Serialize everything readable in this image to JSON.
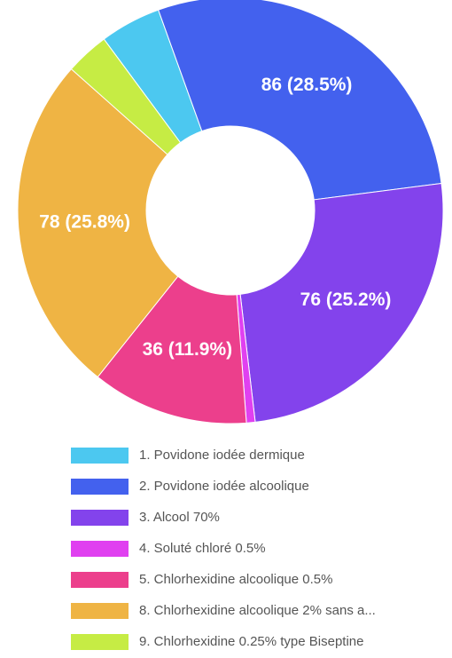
{
  "chart_data": {
    "type": "donut",
    "categories": [
      "1. Povidone iodée dermique",
      "2. Povidone iodée alcoolique",
      "3. Alcool 70%",
      "4. Soluté chloré 0.5%",
      "5. Chlorhexidine alcoolique 0.5%",
      "8. Chlorhexidine alcoolique 2% sans a...",
      "9. Chlorhexidine 0.25% type Biseptine"
    ],
    "values": [
      14,
      86,
      76,
      2,
      36,
      78,
      10
    ],
    "value_labels": [
      null,
      "86 (28.5%)",
      "76 (25.2%)",
      null,
      "36 (11.9%)",
      "78 (25.8%)",
      null
    ],
    "colors": [
      "#4cc8f0",
      "#4361ee",
      "#8343ec",
      "#e040f0",
      "#ec3f8c",
      "#efb444",
      "#c6ec44"
    ],
    "start_angle": -36.5,
    "legend": "bottom"
  }
}
